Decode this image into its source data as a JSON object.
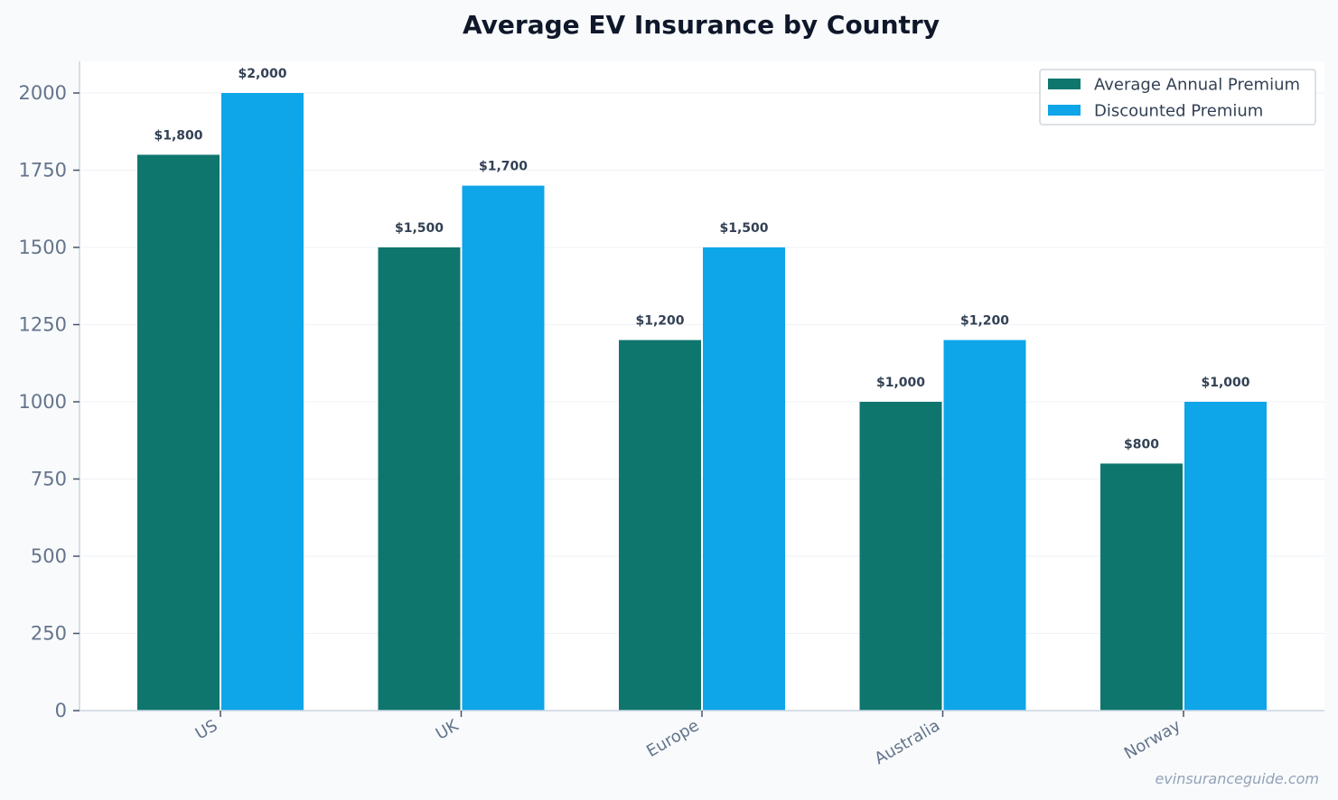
{
  "chart_data": {
    "type": "bar",
    "title": "Average EV Insurance by Country",
    "categories": [
      "US",
      "UK",
      "Europe",
      "Australia",
      "Norway"
    ],
    "series": [
      {
        "name": "Average Annual Premium",
        "color": "#0f766e",
        "values": [
          1800,
          1500,
          1200,
          1000,
          800
        ],
        "labels": [
          "$1,800",
          "$1,500",
          "$1,200",
          "$1,000",
          "$800"
        ]
      },
      {
        "name": "Discounted Premium",
        "color": "#0ea5e9",
        "values": [
          2000,
          1700,
          1500,
          1200,
          1000
        ],
        "labels": [
          "$2,000",
          "$1,700",
          "$1,500",
          "$1,200",
          "$1,000"
        ]
      }
    ],
    "yticks": [
      "0",
      "250",
      "500",
      "750",
      "1000",
      "1250",
      "1500",
      "1750",
      "2000"
    ],
    "ylim": [
      0,
      2100
    ],
    "grid": true,
    "legend": "top-right",
    "xlabel": "",
    "ylabel": ""
  },
  "watermark": "evinsuranceguide.com"
}
